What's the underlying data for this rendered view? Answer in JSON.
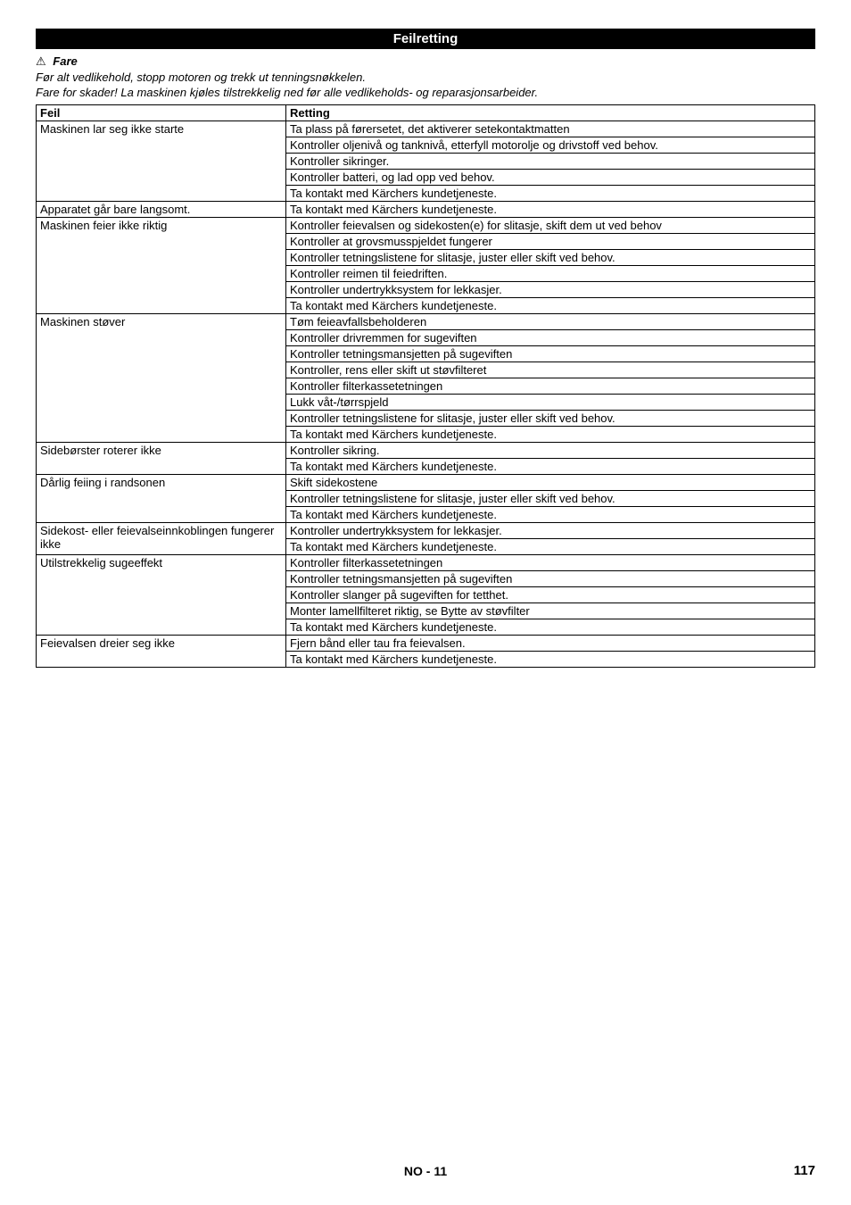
{
  "header": {
    "title": "Feilretting"
  },
  "warning": {
    "icon": "⚠",
    "label": "Fare",
    "line1": "Før alt vedlikehold, stopp motoren og trekk ut tenningsnøkkelen.",
    "line2": "Fare for skader! La maskinen kjøles tilstrekkelig ned før alle vedlikeholds- og reparasjonsarbeider."
  },
  "table": {
    "columns": [
      "Feil",
      "Retting"
    ],
    "groups": [
      {
        "feil": "Maskinen lar seg ikke starte",
        "rettings": [
          "Ta plass på førersetet, det aktiverer setekontaktmatten",
          "Kontroller oljenivå og tanknivå, etterfyll motorolje og drivstoff ved behov.",
          "Kontroller sikringer.",
          "Kontroller batteri, og lad opp ved behov.",
          "Ta kontakt med Kärchers kundetjeneste."
        ]
      },
      {
        "feil": "Apparatet går bare langsomt.",
        "rettings": [
          "Ta kontakt med Kärchers kundetjeneste."
        ]
      },
      {
        "feil": "Maskinen feier ikke riktig",
        "rettings": [
          "Kontroller feievalsen og sidekosten(e) for slitasje, skift dem ut ved behov",
          "Kontroller at grovsmusspjeldet fungerer",
          "Kontroller tetningslistene for slitasje, juster eller skift ved behov.",
          "Kontroller reimen til feiedriften.",
          "Kontroller undertrykksystem for lekkasjer.",
          "Ta kontakt med Kärchers kundetjeneste."
        ]
      },
      {
        "feil": "Maskinen støver",
        "rettings": [
          "Tøm feieavfallsbeholderen",
          "Kontroller drivremmen for sugeviften",
          "Kontroller tetningsmansjetten på sugeviften",
          "Kontroller, rens eller skift ut støvfilteret",
          "Kontroller filterkassetetningen",
          "Lukk våt-/tørrspjeld",
          "Kontroller tetningslistene for slitasje, juster eller skift ved behov.",
          "Ta kontakt med Kärchers kundetjeneste."
        ]
      },
      {
        "feil": "Sidebørster roterer ikke",
        "rettings": [
          "Kontroller sikring.",
          "Ta kontakt med Kärchers kundetjeneste."
        ]
      },
      {
        "feil": "Dårlig feiing i randsonen",
        "rettings": [
          "Skift sidekostene",
          "Kontroller tetningslistene for slitasje, juster eller skift ved behov.",
          "Ta kontakt med Kärchers kundetjeneste."
        ]
      },
      {
        "feil": "Sidekost- eller feievalseinnkoblingen fungerer ikke",
        "rettings": [
          "Kontroller undertrykksystem for lekkasjer.",
          "Ta kontakt med Kärchers kundetjeneste."
        ]
      },
      {
        "feil": "Utilstrekkelig sugeeffekt",
        "rettings": [
          "Kontroller filterkassetetningen",
          "Kontroller tetningsmansjetten på sugeviften",
          "Kontroller slanger på sugeviften for tetthet.",
          "Monter lamellfilteret riktig, se Bytte av støvfilter",
          "Ta kontakt med Kärchers kundetjeneste."
        ]
      },
      {
        "feil": "Feievalsen dreier seg ikke",
        "rettings": [
          "Fjern bånd eller tau fra feievalsen.",
          "Ta kontakt med Kärchers kundetjeneste."
        ]
      }
    ]
  },
  "footer": {
    "lang": "NO",
    "sep": "-",
    "page_local": "11",
    "page_global": "117"
  }
}
